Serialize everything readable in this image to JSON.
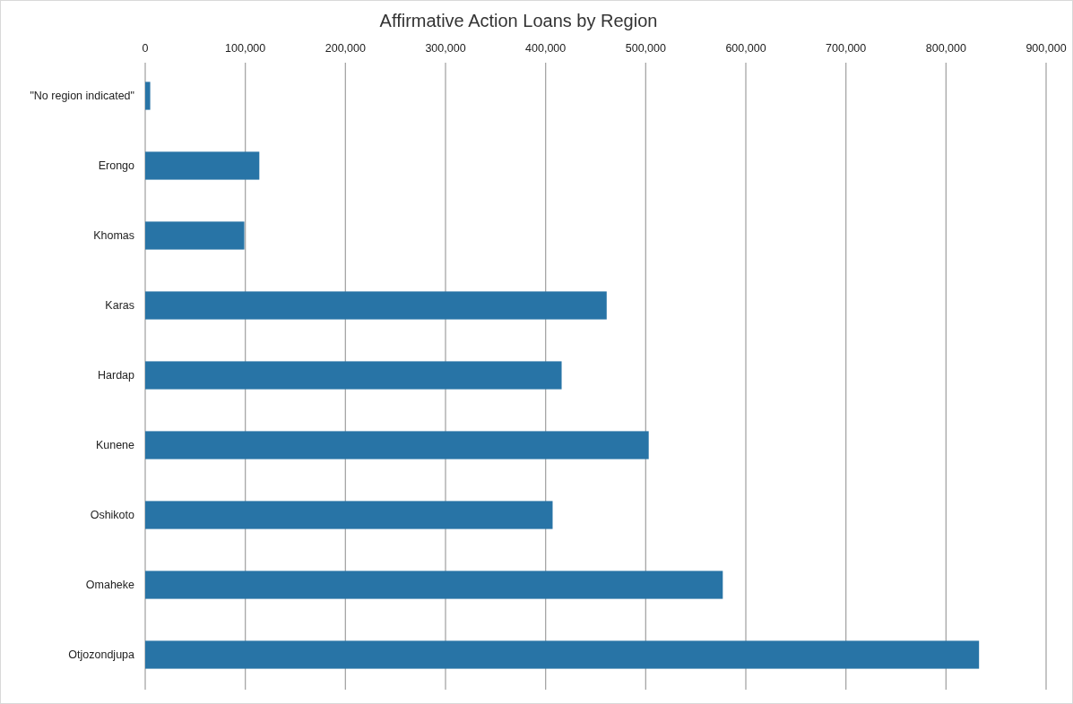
{
  "chart_data": {
    "type": "bar",
    "orientation": "horizontal",
    "title": "Affirmative Action Loans by Region",
    "categories": [
      "\"No region indicated\"",
      "Erongo",
      "Khomas",
      "Karas",
      "Hardap",
      "Kunene",
      "Oshikoto",
      "Omaheke",
      "Otjozondjupa"
    ],
    "values": [
      5000,
      114000,
      99000,
      461000,
      416000,
      503000,
      407000,
      577000,
      833000
    ],
    "color": "#2874a6",
    "xlim": [
      0,
      900000
    ],
    "xticks": [
      0,
      {
        "value": 100000,
        "label": "100,000"
      },
      {
        "value": 200000,
        "label": "200,000"
      },
      {
        "value": 300000,
        "label": "300,000"
      },
      {
        "value": 400000,
        "label": "400,000"
      },
      {
        "value": 500000,
        "label": "500,000"
      },
      {
        "value": 600000,
        "label": "600,000"
      },
      {
        "value": 700000,
        "label": "700,000"
      },
      {
        "value": 800000,
        "label": "800,000"
      },
      {
        "value": 900000,
        "label": "900,000"
      }
    ],
    "grid": "x"
  }
}
